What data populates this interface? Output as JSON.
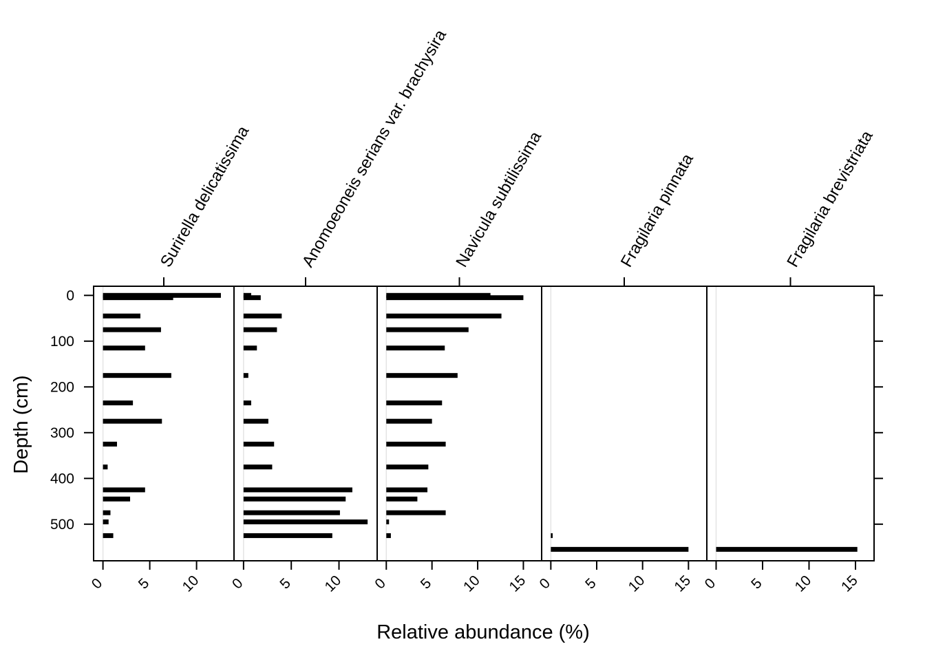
{
  "chart_data": {
    "type": "bar",
    "orientation": "horizontal",
    "xlabel": "Relative abundance (%)",
    "ylabel": "Depth (cm)",
    "ylim": [
      580,
      -20
    ],
    "yticks": [
      0,
      100,
      200,
      300,
      400,
      500
    ],
    "grid": false,
    "depths": [
      0,
      5,
      45,
      75,
      115,
      175,
      235,
      275,
      325,
      375,
      425,
      445,
      475,
      495,
      525,
      555
    ],
    "panels": [
      {
        "title": "Surirella delicatissima",
        "xlim": [
          -1,
          14
        ],
        "xticks": [
          0,
          5,
          10
        ],
        "values": [
          12.6,
          7.5,
          4.0,
          6.2,
          4.5,
          7.3,
          3.2,
          6.3,
          1.5,
          0.5,
          4.5,
          2.9,
          0.8,
          0.6,
          1.1,
          0
        ]
      },
      {
        "title": "Anomoeoneis serians var. brachysira",
        "xlim": [
          -1,
          14
        ],
        "xticks": [
          0,
          5,
          10
        ],
        "values": [
          0.8,
          1.8,
          4.0,
          3.5,
          1.4,
          0.5,
          0.8,
          2.6,
          3.2,
          3.0,
          11.4,
          10.7,
          10.1,
          13.0,
          9.3,
          0
        ]
      },
      {
        "title": "Navicula subtilissima",
        "xlim": [
          -1,
          17
        ],
        "xticks": [
          0,
          5,
          10,
          15
        ],
        "values": [
          11.4,
          15.0,
          12.6,
          9.0,
          6.4,
          7.8,
          6.1,
          5.0,
          6.5,
          4.6,
          4.5,
          3.4,
          6.5,
          0.3,
          0.5,
          0
        ]
      },
      {
        "title": "Fragilaria pinnata",
        "xlim": [
          -1,
          17
        ],
        "xticks": [
          0,
          5,
          10,
          15
        ],
        "values": [
          0,
          0,
          0,
          0,
          0,
          0,
          0,
          0,
          0,
          0,
          0,
          0,
          0,
          0,
          0.2,
          15.0
        ]
      },
      {
        "title": "Fragilaria brevistriata",
        "xlim": [
          -1,
          17
        ],
        "xticks": [
          0,
          5,
          10,
          15
        ],
        "values": [
          0,
          0,
          0,
          0,
          0,
          0,
          0,
          0,
          0,
          0,
          0,
          0,
          0,
          0,
          0,
          15.2
        ]
      }
    ]
  }
}
